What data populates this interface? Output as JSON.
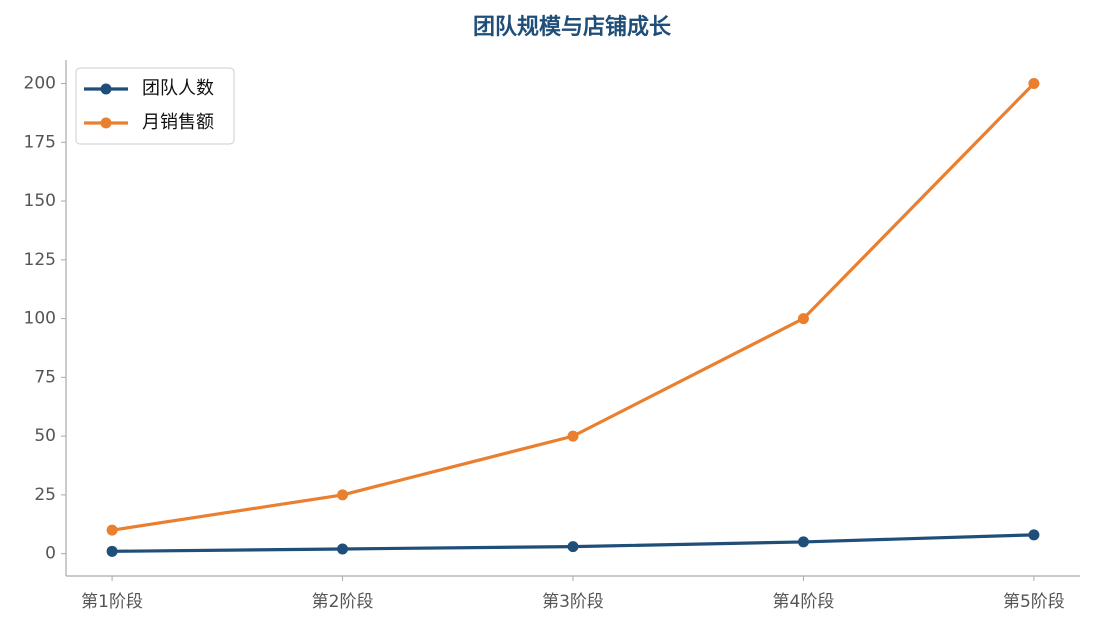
{
  "chart_data": {
    "type": "line",
    "title": "团队规模与店铺成长",
    "categories": [
      "第1阶段",
      "第2阶段",
      "第3阶段",
      "第4阶段",
      "第5阶段"
    ],
    "series": [
      {
        "name": "团队人数",
        "color": "#1f4e79",
        "values": [
          1,
          2,
          3,
          5,
          8
        ]
      },
      {
        "name": "月销售额",
        "color": "#e97f2f",
        "values": [
          10,
          25,
          50,
          100,
          200
        ]
      }
    ],
    "ylim": [
      -9.5,
      210
    ],
    "yticks": [
      0,
      25,
      50,
      75,
      100,
      125,
      150,
      175,
      200
    ],
    "grid": false,
    "legend": "upper-left"
  }
}
